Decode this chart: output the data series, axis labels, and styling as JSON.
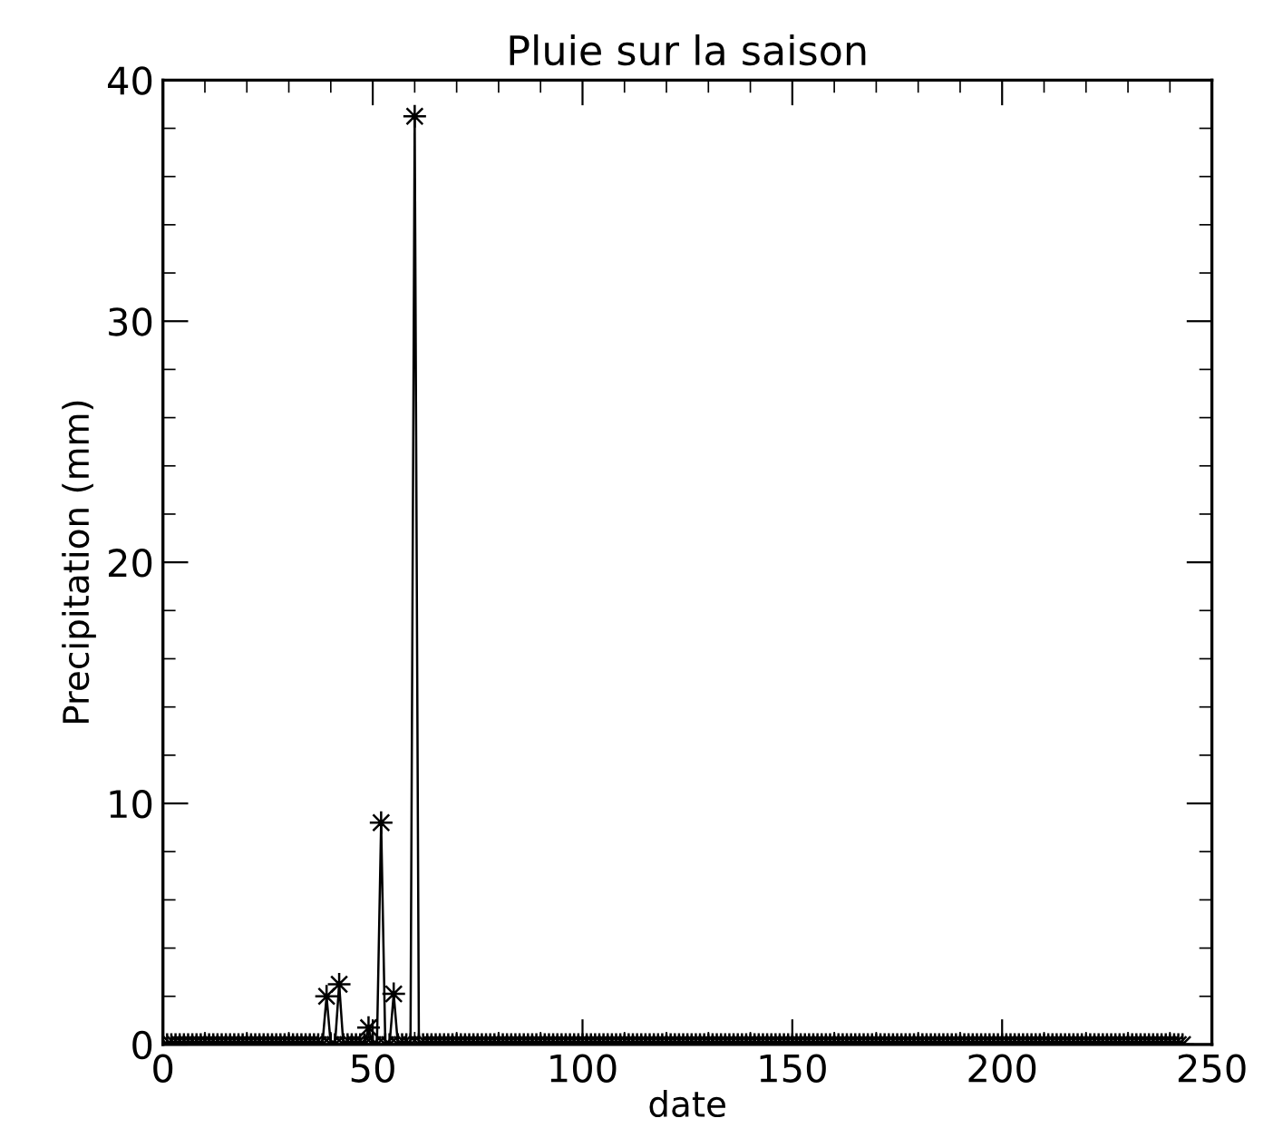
{
  "chart_data": {
    "type": "line",
    "title": "Pluie sur la saison",
    "xlabel": "date",
    "ylabel": "Precipitation (mm)",
    "x": [
      1,
      2,
      3,
      4,
      5,
      6,
      7,
      8,
      9,
      10,
      11,
      12,
      13,
      14,
      15,
      16,
      17,
      18,
      19,
      20,
      21,
      22,
      23,
      24,
      25,
      26,
      27,
      28,
      29,
      30,
      31,
      32,
      33,
      34,
      35,
      36,
      37,
      38,
      39,
      40,
      41,
      42,
      43,
      44,
      45,
      46,
      47,
      48,
      49,
      50,
      51,
      52,
      53,
      54,
      55,
      56,
      57,
      58,
      59,
      60,
      61,
      62,
      63,
      64,
      65,
      66,
      67,
      68,
      69,
      70,
      71,
      72,
      73,
      74,
      75,
      76,
      77,
      78,
      79,
      80,
      81,
      82,
      83,
      84,
      85,
      86,
      87,
      88,
      89,
      90,
      91,
      92,
      93,
      94,
      95,
      96,
      97,
      98,
      99,
      100,
      101,
      102,
      103,
      104,
      105,
      106,
      107,
      108,
      109,
      110,
      111,
      112,
      113,
      114,
      115,
      116,
      117,
      118,
      119,
      120,
      121,
      122,
      123,
      124,
      125,
      126,
      127,
      128,
      129,
      130,
      131,
      132,
      133,
      134,
      135,
      136,
      137,
      138,
      139,
      140,
      141,
      142,
      143,
      144,
      145,
      146,
      147,
      148,
      149,
      150,
      151,
      152,
      153,
      154,
      155,
      156,
      157,
      158,
      159,
      160,
      161,
      162,
      163,
      164,
      165,
      166,
      167,
      168,
      169,
      170,
      171,
      172,
      173,
      174,
      175,
      176,
      177,
      178,
      179,
      180,
      181,
      182,
      183,
      184,
      185,
      186,
      187,
      188,
      189,
      190,
      191,
      192,
      193,
      194,
      195,
      196,
      197,
      198,
      199,
      200,
      201,
      202,
      203,
      204,
      205,
      206,
      207,
      208,
      209,
      210,
      211,
      212,
      213,
      214,
      215,
      216,
      217,
      218,
      219,
      220,
      221,
      222,
      223,
      224,
      225,
      226,
      227,
      228,
      229,
      230,
      231,
      232,
      233,
      234,
      235,
      236,
      237,
      238,
      239,
      240,
      241,
      242,
      243
    ],
    "series": [
      {
        "color": "#000000",
        "values": [
          0,
          0,
          0,
          0,
          0,
          0,
          0,
          0,
          0,
          0,
          0,
          0,
          0,
          0,
          0,
          0,
          0,
          0,
          0,
          0,
          0,
          0,
          0,
          0,
          0,
          0,
          0,
          0,
          0,
          0,
          0,
          0,
          0,
          0,
          0,
          0,
          0,
          0,
          2.0,
          0,
          0,
          2.5,
          0,
          0,
          0,
          0,
          0,
          0,
          0.7,
          0,
          0,
          9.2,
          0,
          0,
          2.1,
          0,
          0,
          0,
          0,
          38.5,
          0,
          0,
          0,
          0,
          0,
          0,
          0,
          0,
          0,
          0,
          0,
          0,
          0,
          0,
          0,
          0,
          0,
          0,
          0,
          0,
          0,
          0,
          0,
          0,
          0,
          0,
          0,
          0,
          0,
          0,
          0,
          0,
          0,
          0,
          0,
          0,
          0,
          0,
          0,
          0,
          0,
          0,
          0,
          0,
          0,
          0,
          0,
          0,
          0,
          0,
          0,
          0,
          0,
          0,
          0,
          0,
          0,
          0,
          0,
          0,
          0,
          0,
          0,
          0,
          0,
          0,
          0,
          0,
          0,
          0,
          0,
          0,
          0,
          0,
          0,
          0,
          0,
          0,
          0,
          0,
          0,
          0,
          0,
          0,
          0,
          0,
          0,
          0,
          0,
          0,
          0,
          0,
          0,
          0,
          0,
          0,
          0,
          0,
          0,
          0,
          0,
          0,
          0,
          0,
          0,
          0,
          0,
          0,
          0,
          0,
          0,
          0,
          0,
          0,
          0,
          0,
          0,
          0,
          0,
          0,
          0,
          0,
          0,
          0,
          0,
          0,
          0,
          0,
          0,
          0,
          0,
          0,
          0,
          0,
          0,
          0,
          0,
          0,
          0,
          0,
          0,
          0,
          0,
          0,
          0,
          0,
          0,
          0,
          0,
          0,
          0,
          0,
          0,
          0,
          0,
          0,
          0,
          0,
          0,
          0,
          0,
          0,
          0,
          0,
          0,
          0,
          0,
          0,
          0,
          0,
          0,
          0,
          0,
          0,
          0,
          0,
          0,
          0,
          0,
          0,
          0,
          0,
          0
        ]
      }
    ],
    "xlim": [
      0,
      250
    ],
    "xticks": [
      0,
      50,
      100,
      150,
      200,
      250
    ],
    "ylim": [
      0,
      40
    ],
    "yticks": [
      0,
      10,
      20,
      30,
      40
    ],
    "marker": "star",
    "line_style": "solid",
    "grid": false,
    "legend": false
  }
}
